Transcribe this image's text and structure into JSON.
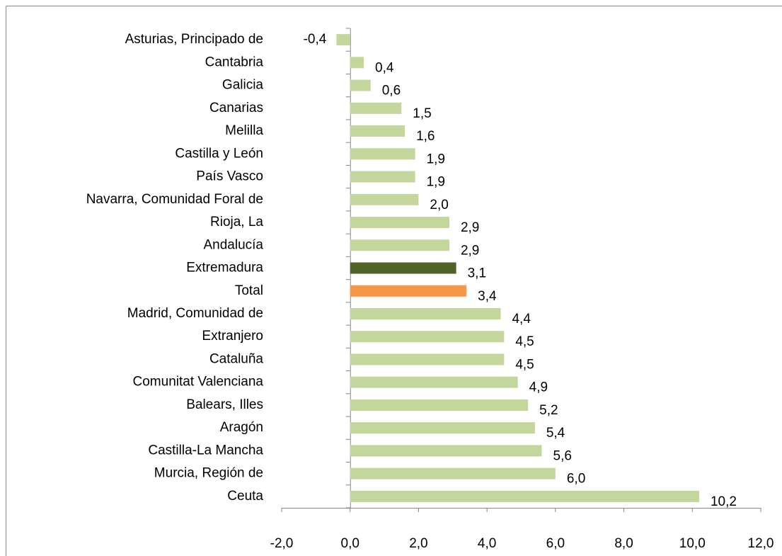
{
  "chart_data": {
    "type": "hbar",
    "categories": [
      "Asturias, Principado de",
      "Cantabria",
      "Galicia",
      "Canarias",
      "Melilla",
      "Castilla y León",
      "País Vasco",
      "Navarra, Comunidad  Foral de",
      "Rioja, La",
      "Andalucía",
      "Extremadura",
      "Total",
      "Madrid, Comunidad de",
      "Extranjero",
      "Cataluña",
      "Comunitat Valenciana",
      "Balears, Illes",
      "Aragón",
      "Castilla-La Mancha",
      "Murcia, Región de",
      "Ceuta"
    ],
    "values": [
      -0.4,
      0.4,
      0.6,
      1.5,
      1.6,
      1.9,
      1.9,
      2.0,
      2.9,
      2.9,
      3.1,
      3.4,
      4.4,
      4.5,
      4.5,
      4.9,
      5.2,
      5.4,
      5.6,
      6.0,
      10.2
    ],
    "value_labels": [
      "-0,4",
      "0,4",
      "0,6",
      "1,5",
      "1,6",
      "1,9",
      "1,9",
      "2,0",
      "2,9",
      "2,9",
      "3,1",
      "3,4",
      "4,4",
      "4,5",
      "4,5",
      "4,9",
      "5,2",
      "5,4",
      "5,6",
      "6,0",
      "10,2"
    ],
    "colors": [
      "#c3d69b",
      "#c3d69b",
      "#c3d69b",
      "#c3d69b",
      "#c3d69b",
      "#c3d69b",
      "#c3d69b",
      "#c3d69b",
      "#c3d69b",
      "#c3d69b",
      "#4f6228",
      "#f79646",
      "#c3d69b",
      "#c3d69b",
      "#c3d69b",
      "#c3d69b",
      "#c3d69b",
      "#c3d69b",
      "#c3d69b",
      "#c3d69b",
      "#c3d69b"
    ],
    "xlim": [
      -2,
      12
    ],
    "xticks": [
      {
        "value": -2,
        "label": "-2,0"
      },
      {
        "value": 0,
        "label": "0,0"
      },
      {
        "value": 2,
        "label": "2,0"
      },
      {
        "value": 4,
        "label": "4,0"
      },
      {
        "value": 6,
        "label": "6,0"
      },
      {
        "value": 8,
        "label": "8,0"
      },
      {
        "value": 10,
        "label": "10,0"
      },
      {
        "value": 12,
        "label": "12,0"
      }
    ]
  }
}
